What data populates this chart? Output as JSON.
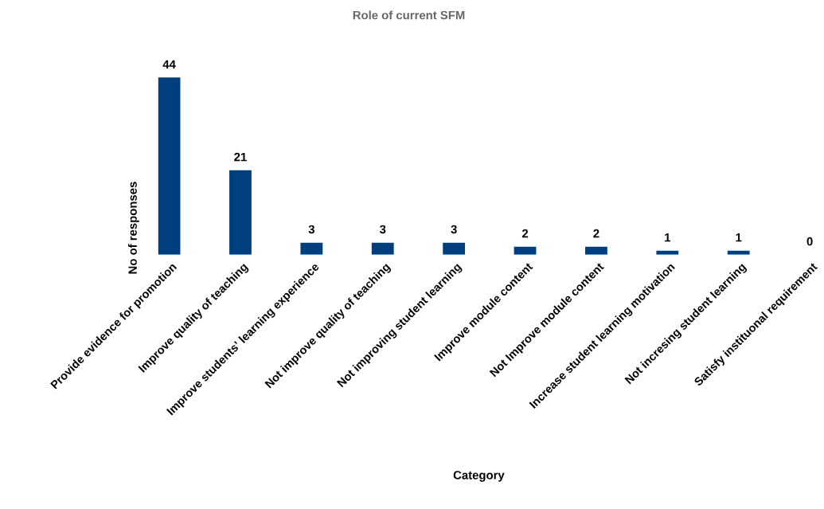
{
  "chart_data": {
    "type": "bar",
    "title": "Role of current SFM",
    "xlabel": "Category",
    "ylabel": "No of responses",
    "categories": [
      "Provide evidence for promotion",
      "Improve quality of teaching",
      "Improve students’ learning experience",
      "Not improve quality of teaching",
      "Not improving student learning",
      "Improve module content",
      "Not Improve module content",
      "Increase student learning motivation",
      "Not incresing student learning",
      "Satisfy instituonal requirement"
    ],
    "values": [
      44,
      21,
      3,
      3,
      3,
      2,
      2,
      1,
      1,
      0
    ],
    "color": "#003f7d",
    "data_labels": true,
    "tick_labels": "x"
  }
}
